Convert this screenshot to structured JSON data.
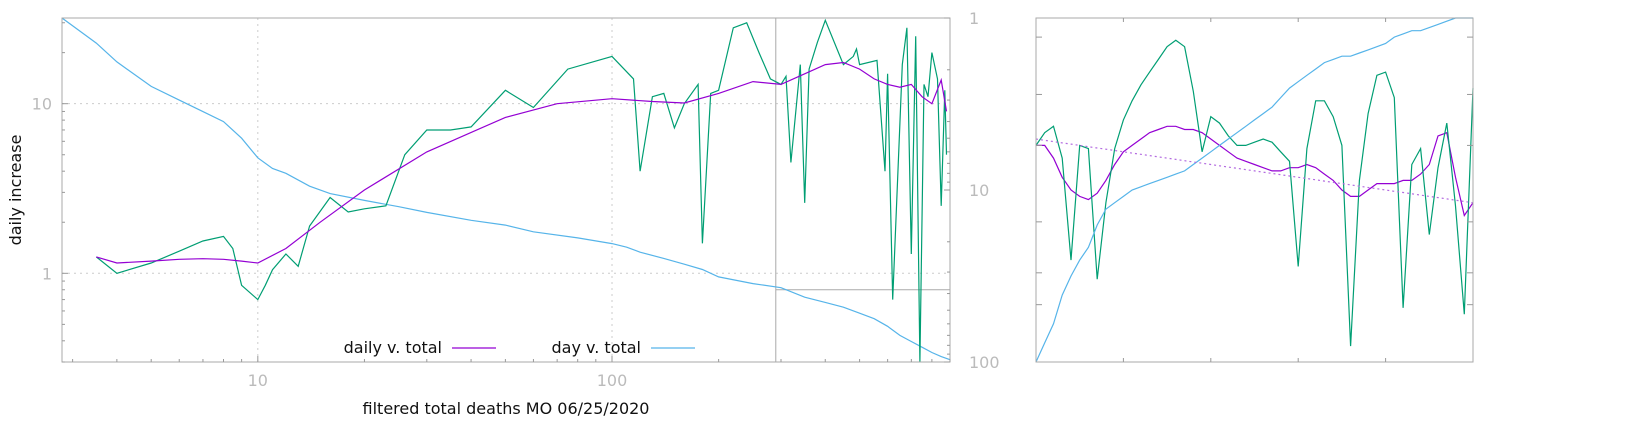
{
  "chart_data": [
    {
      "type": "line",
      "xlabel": "filtered total deaths MO 06/25/2020",
      "ylabel": "daily increase",
      "xscale": "log",
      "yscale": "log",
      "xlim": [
        2.8,
        900
      ],
      "ylim": [
        0.3,
        32
      ],
      "y2lim": [
        1,
        100
      ],
      "y2scale": "log",
      "y2_reversed": true,
      "x_ticks": [
        "10",
        "100"
      ],
      "y_ticks": [
        "1",
        "10"
      ],
      "y2_ticks": [
        "1",
        "10",
        "100"
      ],
      "grid": true,
      "legend_position": "bottom-center",
      "marker_x": 290,
      "marker_y": 0.8,
      "colors": {
        "daily": "#9400d3",
        "raw": "#009e73",
        "day": "#56b4e9"
      },
      "series": [
        {
          "name": "daily v. total",
          "axis": "y",
          "x": [
            3.5,
            4.0,
            5.0,
            6.0,
            7.0,
            8.0,
            9.0,
            10.0,
            12.0,
            15.0,
            20.0,
            30.0,
            50.0,
            70.0,
            100.0,
            130.0,
            160.0,
            200.0,
            250.0,
            300.0,
            350.0,
            400.0,
            450.0,
            500.0,
            550.0,
            600.0,
            650.0,
            700.0,
            750.0,
            800.0,
            850.0,
            880.0
          ],
          "values": [
            1.25,
            1.15,
            1.18,
            1.21,
            1.22,
            1.21,
            1.18,
            1.15,
            1.4,
            2.0,
            3.1,
            5.2,
            8.3,
            10.0,
            10.7,
            10.3,
            10.1,
            11.5,
            13.5,
            13.0,
            15.0,
            17.0,
            17.5,
            16.0,
            14.0,
            13.0,
            12.5,
            13.0,
            11.0,
            10.0,
            13.8,
            9.0
          ]
        },
        {
          "name": "",
          "axis": "y",
          "x": [
            3.5,
            4.0,
            5.0,
            6.0,
            7.0,
            8.0,
            8.5,
            9.0,
            10.0,
            10.5,
            11.0,
            12.0,
            13.0,
            14.0,
            16.0,
            18.0,
            20.0,
            23.0,
            26.0,
            30.0,
            35.0,
            40.0,
            50.0,
            60.0,
            75.0,
            100.0,
            115.0,
            120.0,
            130.0,
            140.0,
            150.0,
            160.0,
            175.0,
            180.0,
            190.0,
            200.0,
            220.0,
            240.0,
            260.0,
            280.0,
            300.0,
            310.0,
            320.0,
            340.0,
            350.0,
            360.0,
            380.0,
            400.0,
            450.0,
            480.0,
            490.0,
            500.0,
            560.0,
            590.0,
            600.0,
            620.0,
            660.0,
            680.0,
            700.0,
            720.0,
            740.0,
            760.0,
            780.0,
            800.0,
            830.0,
            850.0,
            870.0,
            880.0
          ],
          "values": [
            1.25,
            1.0,
            1.15,
            1.35,
            1.55,
            1.65,
            1.4,
            0.85,
            0.7,
            0.85,
            1.05,
            1.3,
            1.1,
            1.9,
            2.8,
            2.3,
            2.4,
            2.5,
            5.0,
            7.0,
            7.0,
            7.3,
            12.0,
            9.5,
            16.0,
            19.0,
            14.0,
            4.0,
            11.0,
            11.5,
            7.2,
            10.0,
            13.0,
            1.5,
            11.5,
            12.0,
            28.0,
            30.0,
            20.0,
            14.0,
            13.0,
            14.5,
            4.5,
            17.0,
            2.6,
            16.0,
            23.0,
            31.0,
            17.0,
            19.0,
            21.0,
            17.0,
            18.0,
            4.0,
            15.0,
            0.7,
            17.0,
            28.0,
            1.3,
            25.0,
            0.3,
            13.0,
            11.0,
            20.0,
            14.0,
            2.5,
            12.0,
            5.0
          ]
        },
        {
          "name": "day v. total",
          "axis": "y2",
          "x": [
            2.8,
            3.5,
            4.0,
            5.0,
            6.0,
            7.0,
            8.0,
            9.0,
            10.0,
            11.0,
            12.0,
            14.0,
            16.0,
            20.0,
            25.0,
            30.0,
            40.0,
            50.0,
            60.0,
            80.0,
            100.0,
            110.0,
            120.0,
            140.0,
            160.0,
            180.0,
            200.0,
            250.0,
            300.0,
            350.0,
            400.0,
            450.0,
            500.0,
            550.0,
            600.0,
            650.0,
            700.0,
            750.0,
            800.0,
            850.0,
            900.0
          ],
          "values": [
            1.0,
            1.4,
            1.8,
            2.5,
            3.0,
            3.5,
            4.0,
            5.0,
            6.5,
            7.5,
            8.0,
            9.5,
            10.5,
            11.5,
            12.5,
            13.5,
            15.0,
            16.0,
            17.5,
            19.0,
            20.5,
            21.5,
            23.0,
            25.0,
            27.0,
            29.0,
            32.0,
            35.0,
            37.0,
            42.0,
            45.0,
            48.0,
            52.0,
            56.0,
            62.0,
            70.0,
            76.0,
            82.0,
            88.0,
            93.0,
            97.0
          ]
        }
      ]
    },
    {
      "type": "line",
      "xlabel": "",
      "ylabel": "",
      "grid": false,
      "colors": {
        "daily": "#9400d3",
        "raw": "#009e73",
        "day": "#56b4e9",
        "trend": "#b36be0"
      },
      "x": [
        0,
        2,
        4,
        6,
        8,
        10,
        12,
        14,
        16,
        18,
        20,
        22,
        24,
        26,
        28,
        30,
        32,
        34,
        36,
        38,
        40,
        42,
        44,
        46,
        48,
        50,
        52,
        54,
        56,
        58,
        60,
        62,
        64,
        66,
        68,
        70,
        72,
        74,
        76,
        78,
        80,
        82,
        84,
        86,
        88,
        90,
        92,
        94,
        96,
        98,
        100
      ],
      "series": [
        {
          "name": "",
          "role": "daily",
          "values": [
            5.0,
            5.0,
            4.6,
            4.0,
            3.6,
            3.4,
            3.3,
            3.5,
            3.9,
            4.4,
            4.8,
            5.0,
            5.2,
            5.4,
            5.5,
            5.6,
            5.6,
            5.5,
            5.5,
            5.4,
            5.2,
            5.0,
            4.8,
            4.6,
            4.5,
            4.4,
            4.3,
            4.2,
            4.2,
            4.3,
            4.3,
            4.4,
            4.3,
            4.1,
            3.9,
            3.6,
            3.4,
            3.4,
            3.6,
            3.8,
            3.8,
            3.8,
            3.9,
            3.9,
            4.1,
            4.4,
            5.3,
            5.4,
            4.0,
            2.8,
            3.2
          ]
        },
        {
          "name": "",
          "role": "raw",
          "values": [
            5.0,
            5.4,
            5.6,
            4.6,
            1.4,
            5.0,
            4.9,
            0.8,
            3.2,
            4.9,
            5.8,
            6.4,
            6.9,
            7.3,
            7.7,
            8.1,
            8.3,
            8.1,
            6.7,
            4.8,
            5.9,
            5.7,
            5.3,
            5.0,
            5.0,
            5.1,
            5.2,
            5.1,
            4.8,
            4.5,
            1.2,
            4.9,
            6.4,
            6.4,
            5.9,
            5.0,
            -1.3,
            3.9,
            6.0,
            7.2,
            7.3,
            6.5,
            -0.1,
            4.4,
            4.9,
            2.2,
            4.3,
            5.7,
            3.1,
            -0.3,
            6.8
          ]
        },
        {
          "name": "",
          "role": "day",
          "values": [
            -1.8,
            -1.2,
            -0.6,
            0.3,
            0.9,
            1.4,
            1.8,
            2.5,
            3.0,
            3.2,
            3.4,
            3.6,
            3.7,
            3.8,
            3.9,
            4.0,
            4.1,
            4.2,
            4.4,
            4.6,
            4.8,
            5.0,
            5.2,
            5.4,
            5.6,
            5.8,
            6.0,
            6.2,
            6.5,
            6.8,
            7.0,
            7.2,
            7.4,
            7.6,
            7.7,
            7.8,
            7.8,
            7.9,
            8.0,
            8.1,
            8.2,
            8.4,
            8.5,
            8.6,
            8.6,
            8.7,
            8.8,
            8.9,
            9.0,
            9.1,
            9.3
          ]
        },
        {
          "name": "",
          "role": "trend",
          "values": [
            5.2,
            5.16,
            5.12,
            5.08,
            5.04,
            5.0,
            4.96,
            4.92,
            4.88,
            4.84,
            4.8,
            4.76,
            4.72,
            4.68,
            4.64,
            4.6,
            4.56,
            4.52,
            4.48,
            4.44,
            4.4,
            4.36,
            4.32,
            4.28,
            4.24,
            4.2,
            4.16,
            4.12,
            4.08,
            4.04,
            4.0,
            3.96,
            3.92,
            3.88,
            3.84,
            3.8,
            3.76,
            3.72,
            3.68,
            3.64,
            3.6,
            3.56,
            3.52,
            3.48,
            3.44,
            3.4,
            3.36,
            3.32,
            3.28,
            3.24,
            3.2
          ]
        }
      ],
      "ylim": [
        -1.8,
        9.0
      ]
    }
  ]
}
